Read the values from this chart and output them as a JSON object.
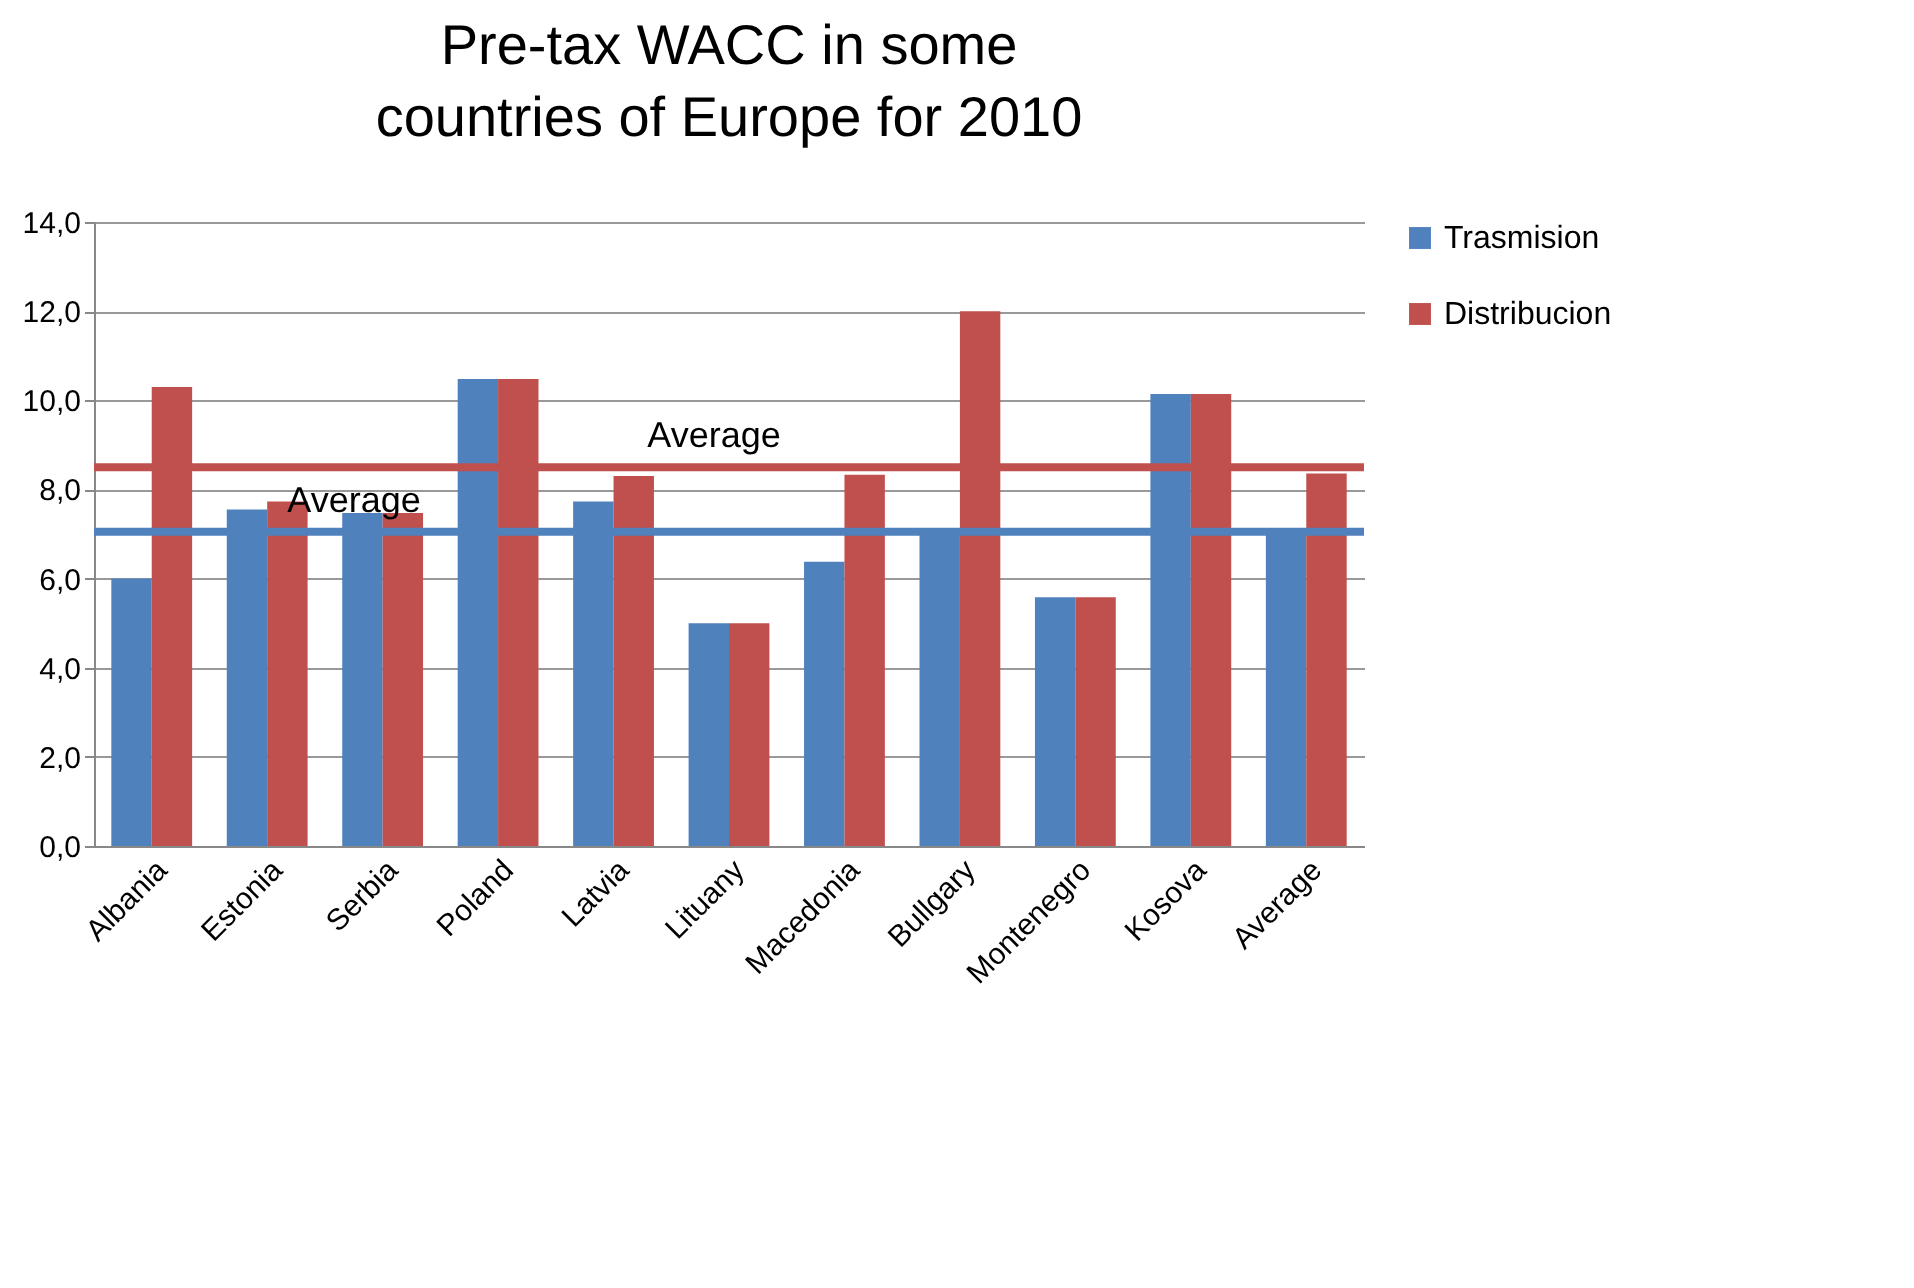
{
  "chart_data": {
    "type": "bar",
    "title": "Pre-tax WACC in some countries of Europe for 2010",
    "categories": [
      "Albania",
      "Estonia",
      "Serbia",
      "Poland",
      "Latvia",
      "Lituany",
      "Macedonia",
      "Bullgary",
      "Montenegro",
      "Kosova",
      "Average"
    ],
    "series": [
      {
        "name": "Trasmision",
        "color": "#4f81bd",
        "values": [
          6.0,
          7.55,
          7.47,
          10.48,
          7.73,
          5.0,
          6.38,
          7.0,
          5.58,
          10.14,
          7.0
        ]
      },
      {
        "name": "Distribucion",
        "color": "#c0504d",
        "values": [
          10.3,
          7.73,
          7.47,
          10.48,
          8.3,
          5.0,
          8.33,
          12.0,
          5.58,
          10.14,
          8.36
        ]
      }
    ],
    "ylim": [
      0,
      14
    ],
    "yticks": [
      {
        "value": 0,
        "label": "0,0"
      },
      {
        "value": 2,
        "label": "2,0"
      },
      {
        "value": 4,
        "label": "4,0"
      },
      {
        "value": 6,
        "label": "6,0"
      },
      {
        "value": 8,
        "label": "8,0"
      },
      {
        "value": 10,
        "label": "10,0"
      },
      {
        "value": 12,
        "label": "12,0"
      },
      {
        "value": 14,
        "label": "14,0"
      }
    ],
    "grid": "y",
    "legend": "right",
    "ref_lines": [
      {
        "axis": "y",
        "value": 7.05,
        "label": "Average",
        "color": "#4f81bd"
      },
      {
        "axis": "y",
        "value": 8.5,
        "label": "Average",
        "color": "#c0504d"
      }
    ]
  }
}
